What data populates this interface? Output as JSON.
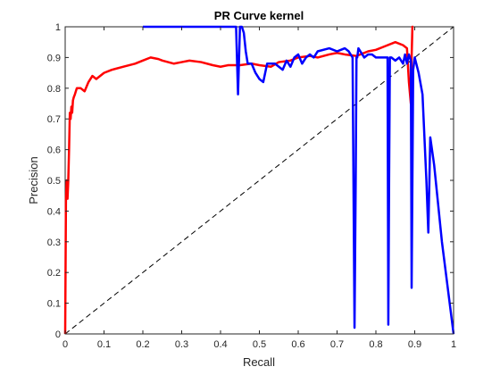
{
  "chart_data": {
    "type": "line",
    "title": "PR Curve kernel",
    "xlabel": "Recall",
    "ylabel": "Precision",
    "xlim": [
      0,
      1
    ],
    "ylim": [
      0,
      1
    ],
    "x_ticks": [
      "0",
      "0.1",
      "0.2",
      "0.3",
      "0.4",
      "0.5",
      "0.6",
      "0.7",
      "0.8",
      "0.9",
      "1"
    ],
    "y_ticks": [
      "0",
      "0.1",
      "0.2",
      "0.3",
      "0.4",
      "0.5",
      "0.6",
      "0.7",
      "0.8",
      "0.9",
      "1"
    ],
    "grid": false,
    "legend": "none",
    "series": [
      {
        "color": "#ff0000",
        "x": [
          0,
          0.002,
          0.004,
          0.006,
          0.008,
          0.01,
          0.012,
          0.014,
          0.016,
          0.018,
          0.02,
          0.022,
          0.025,
          0.03,
          0.04,
          0.05,
          0.06,
          0.07,
          0.08,
          0.1,
          0.12,
          0.15,
          0.18,
          0.2,
          0.22,
          0.24,
          0.25,
          0.28,
          0.3,
          0.32,
          0.35,
          0.38,
          0.4,
          0.42,
          0.45,
          0.48,
          0.5,
          0.53,
          0.55,
          0.58,
          0.6,
          0.63,
          0.65,
          0.68,
          0.7,
          0.72,
          0.75,
          0.78,
          0.8,
          0.82,
          0.85,
          0.87,
          0.88,
          0.885,
          0.89,
          0.892,
          0.894,
          0.896
        ],
        "y": [
          0,
          0.44,
          0.5,
          0.44,
          0.5,
          0.6,
          0.72,
          0.7,
          0.74,
          0.72,
          0.76,
          0.77,
          0.78,
          0.8,
          0.8,
          0.79,
          0.82,
          0.84,
          0.83,
          0.85,
          0.86,
          0.87,
          0.88,
          0.89,
          0.9,
          0.895,
          0.89,
          0.88,
          0.885,
          0.89,
          0.885,
          0.875,
          0.87,
          0.875,
          0.875,
          0.88,
          0.875,
          0.87,
          0.885,
          0.89,
          0.9,
          0.905,
          0.9,
          0.91,
          0.915,
          0.91,
          0.905,
          0.92,
          0.925,
          0.935,
          0.95,
          0.94,
          0.93,
          0.82,
          0.75,
          0.9,
          1.0,
          1.0
        ]
      },
      {
        "color": "#0000ff",
        "x": [
          0.2,
          0.3,
          0.35,
          0.4,
          0.42,
          0.43,
          0.44,
          0.445,
          0.45,
          0.455,
          0.46,
          0.465,
          0.47,
          0.48,
          0.49,
          0.5,
          0.51,
          0.52,
          0.54,
          0.56,
          0.57,
          0.58,
          0.59,
          0.6,
          0.61,
          0.62,
          0.63,
          0.64,
          0.65,
          0.68,
          0.7,
          0.72,
          0.73,
          0.74,
          0.745,
          0.748,
          0.75,
          0.752,
          0.755,
          0.76,
          0.77,
          0.78,
          0.79,
          0.8,
          0.81,
          0.82,
          0.83,
          0.832,
          0.834,
          0.836,
          0.84,
          0.85,
          0.86,
          0.87,
          0.875,
          0.88,
          0.885,
          0.89,
          0.892,
          0.894,
          0.896,
          0.9,
          0.91,
          0.92,
          0.93,
          0.935,
          0.94,
          0.95,
          0.97,
          1.0
        ],
        "y": [
          1.0,
          1.0,
          1.0,
          1.0,
          1.0,
          1.0,
          1.0,
          0.78,
          1.0,
          1.0,
          0.98,
          0.92,
          0.88,
          0.88,
          0.85,
          0.83,
          0.82,
          0.88,
          0.88,
          0.86,
          0.89,
          0.87,
          0.9,
          0.91,
          0.88,
          0.9,
          0.91,
          0.9,
          0.92,
          0.93,
          0.92,
          0.93,
          0.92,
          0.9,
          0.02,
          0.5,
          0.9,
          0.9,
          0.93,
          0.92,
          0.9,
          0.91,
          0.91,
          0.9,
          0.9,
          0.9,
          0.9,
          0.03,
          0.5,
          0.9,
          0.9,
          0.89,
          0.9,
          0.88,
          0.91,
          0.88,
          0.91,
          0.89,
          0.15,
          0.5,
          0.86,
          0.9,
          0.85,
          0.78,
          0.5,
          0.33,
          0.64,
          0.55,
          0.3,
          0.0
        ]
      }
    ],
    "reference_line": {
      "color": "#000000",
      "style": "dashed",
      "x": [
        0,
        1
      ],
      "y": [
        0,
        1
      ]
    }
  }
}
